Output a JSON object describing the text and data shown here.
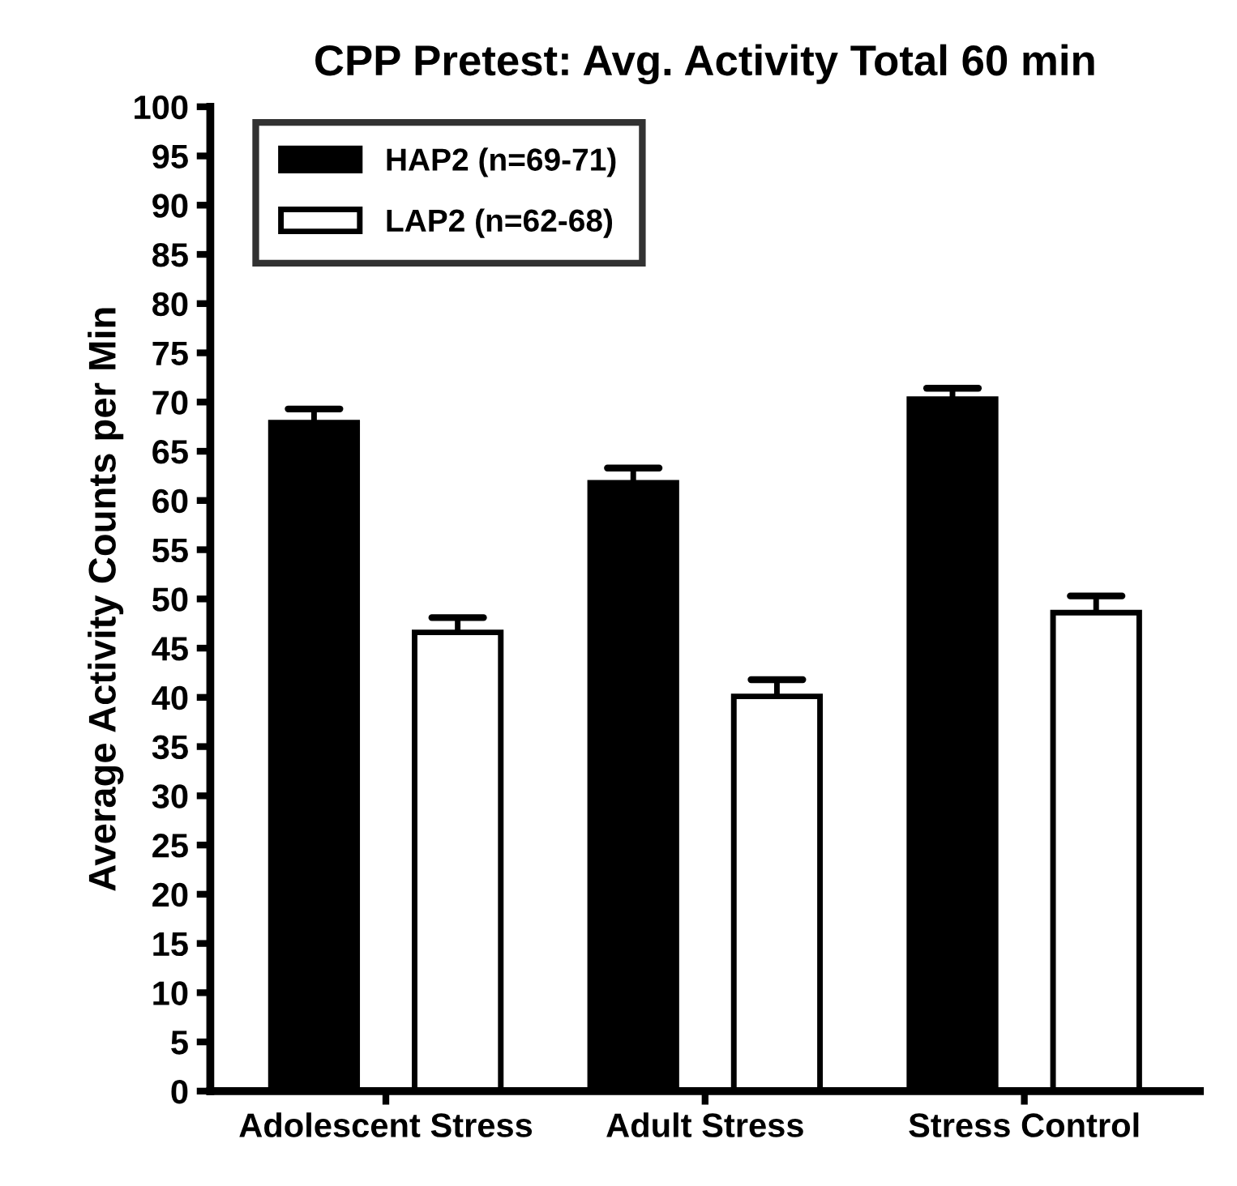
{
  "chart_data": {
    "type": "bar",
    "title": "CPP Pretest: Avg. Activity Total 60 min",
    "ylabel": "Average Activity Counts per Min",
    "categories": [
      "Adolescent Stress",
      "Adult Stress",
      "Stress Control"
    ],
    "series": [
      {
        "name": "HAP2 (n=69-71)",
        "color": "#000000",
        "values": [
          67.9,
          61.8,
          70.3
        ],
        "errors": [
          [
            67.9,
            69.3
          ],
          [
            61.8,
            63.3
          ],
          [
            70.3,
            71.4
          ]
        ]
      },
      {
        "name": "LAP2 (n=62-68)",
        "color": "#ffffff",
        "values": [
          46.6,
          40.1,
          48.6
        ],
        "errors": [
          [
            46.6,
            48.1
          ],
          [
            40.1,
            41.8
          ],
          [
            48.6,
            50.3
          ]
        ]
      }
    ],
    "ylim": [
      0,
      100
    ],
    "yticks": [
      0,
      5,
      10,
      15,
      20,
      25,
      30,
      35,
      40,
      45,
      50,
      55,
      60,
      65,
      70,
      75,
      80,
      85,
      90,
      95,
      100
    ],
    "grid": false,
    "legend": "top left"
  }
}
